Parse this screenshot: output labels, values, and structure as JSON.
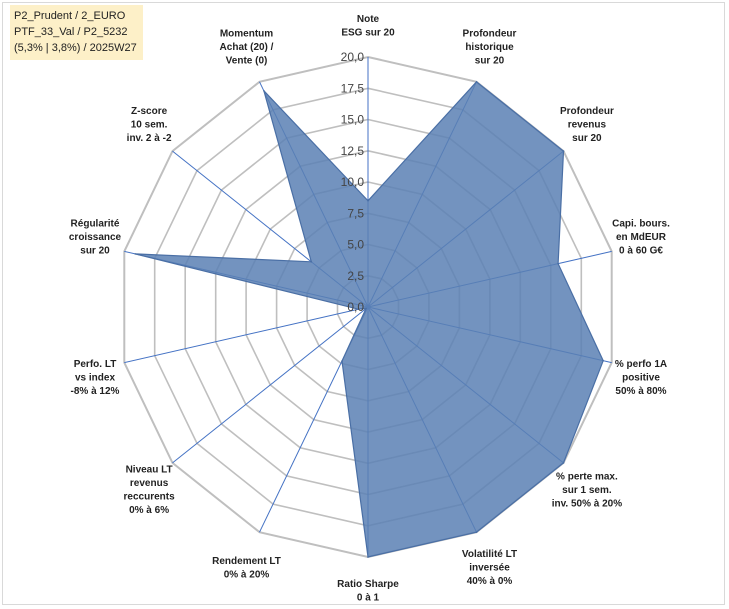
{
  "info": {
    "line1": "P2_Prudent / 2_EURO",
    "line2": "PTF_33_Val / P2_5232",
    "line3": "(5,3% | 3,8%) / 2025W27"
  },
  "chart_data": {
    "type": "radar",
    "axes": [
      [
        "Note",
        "ESG sur 20"
      ],
      [
        "Profondeur",
        "historique",
        "sur 20"
      ],
      [
        "Profondeur",
        "revenus",
        "sur 20"
      ],
      [
        "Capi. bours.",
        "en MdEUR",
        "0 à 60 G€"
      ],
      [
        "% perfo 1A",
        "positive",
        "50% à 80%"
      ],
      [
        "% perte max.",
        "sur 1 sem.",
        "inv. 50% à 20%"
      ],
      [
        "Volatilité LT",
        "inversée",
        "40% à 0%"
      ],
      [
        "Ratio Sharpe",
        "0 à 1"
      ],
      [
        "Rendement LT",
        "0% à 20%"
      ],
      [
        "Niveau LT",
        "revenus",
        "reccurents",
        "0% à 6%"
      ],
      [
        "Perfo. LT",
        "vs index",
        "-8% à 12%"
      ],
      [
        "Régularité",
        "croissance",
        "sur 20"
      ],
      [
        "Z-score",
        "10 sem.",
        "inv. 2 à -2"
      ],
      [
        "Momentum",
        "Achat (20) /",
        "Vente (0)"
      ]
    ],
    "tick_labels": [
      "0,0",
      "2,5",
      "5,0",
      "7,5",
      "10,0",
      "12,5",
      "15,0",
      "17,5",
      "20,0"
    ],
    "rmin": 0,
    "rmax": 20,
    "series": [
      {
        "values": [
          8.5,
          20,
          20,
          15.6,
          19.3,
          20,
          20,
          20,
          4.8,
          0.2,
          0.8,
          19.1,
          5.8,
          19.2
        ],
        "color": "#5b80b4"
      }
    ],
    "grid_color": "#bfbfbf",
    "axis_line_color": "#4472c4"
  }
}
